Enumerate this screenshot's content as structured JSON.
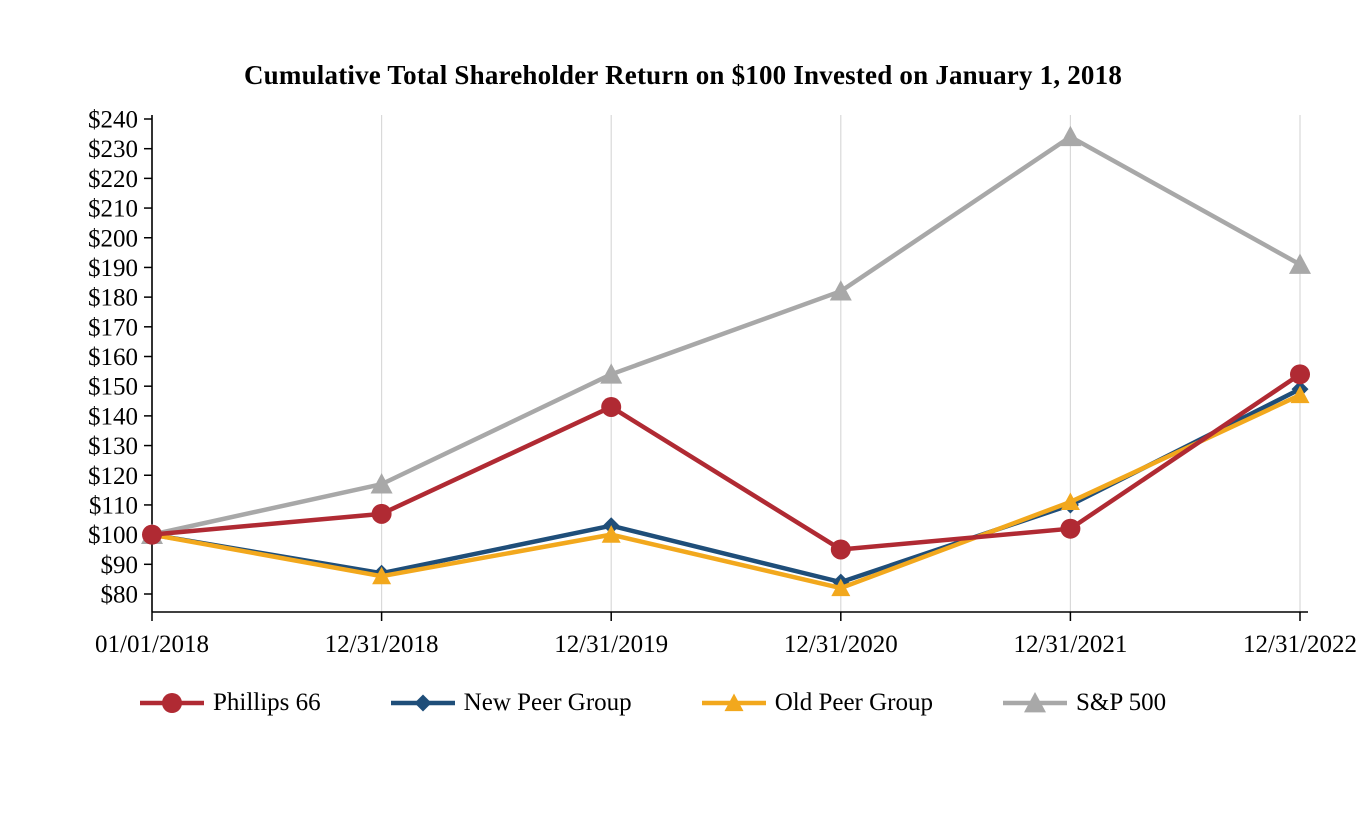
{
  "chart_data": {
    "type": "line",
    "title": "Cumulative Total Shareholder Return on $100 Invested on January 1, 2018",
    "xlabel": "",
    "ylabel": "",
    "x": [
      "01/01/2018",
      "12/31/2018",
      "12/31/2019",
      "12/31/2020",
      "12/31/2021",
      "12/31/2022"
    ],
    "series": [
      {
        "name": "Phillips 66",
        "color": "#b02a33",
        "marker": "circle",
        "values": [
          100,
          107,
          143,
          95,
          102,
          154
        ]
      },
      {
        "name": "New Peer Group",
        "color": "#1f4e79",
        "marker": "diamond",
        "values": [
          100,
          87,
          103,
          84,
          110,
          149
        ]
      },
      {
        "name": "Old Peer Group",
        "color": "#f2a81d",
        "marker": "triangle",
        "values": [
          100,
          86,
          100,
          82,
          111,
          147
        ]
      },
      {
        "name": "S&P 500",
        "color": "#a8a8a8",
        "marker": "triangle",
        "values": [
          100,
          117,
          154,
          182,
          234,
          191
        ]
      }
    ],
    "ylim": [
      80,
      240
    ],
    "ytick_step": 10,
    "yticks": [
      "$80",
      "$90",
      "$100",
      "$110",
      "$120",
      "$130",
      "$140",
      "$150",
      "$160",
      "$170",
      "$180",
      "$190",
      "$200",
      "$210",
      "$220",
      "$230",
      "$240"
    ],
    "grid": "vertical",
    "gridline_color": "#d9d9d9",
    "axis_color": "#000000",
    "legend_position": "bottom"
  }
}
